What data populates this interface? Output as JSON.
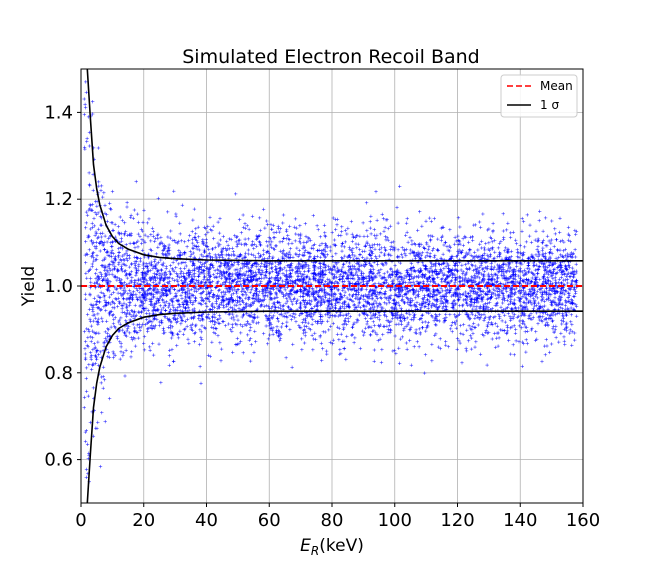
{
  "chart_data": {
    "type": "scatter",
    "title": "Simulated Electron Recoil Band",
    "xlabel": "E_R(keV)",
    "xlabel_parts": {
      "main": "E",
      "sub": "R",
      "unit": "(keV)"
    },
    "ylabel": "Yield",
    "xlim": [
      0,
      160
    ],
    "ylim": [
      0.5,
      1.5
    ],
    "xticks": [
      0,
      20,
      40,
      60,
      80,
      100,
      120,
      140,
      160
    ],
    "xtick_labels": [
      "0",
      "20",
      "40",
      "60",
      "80",
      "100",
      "120",
      "140",
      "160"
    ],
    "yticks": [
      0.6,
      0.8,
      1.0,
      1.2,
      1.4
    ],
    "ytick_labels": [
      "0.6",
      "0.8",
      "1.0",
      "1.2",
      "1.4"
    ],
    "grid": true,
    "legend": {
      "placement": "top-right",
      "entries": [
        {
          "label": "Mean",
          "color": "#ff0000",
          "style": "dashed"
        },
        {
          "label": "1 σ",
          "color": "#000000",
          "style": "solid"
        }
      ]
    },
    "series": [
      {
        "name": "Mean",
        "kind": "line",
        "color": "#ff0000",
        "style": "dashed",
        "x": [
          0,
          160
        ],
        "y": [
          1.0,
          1.0
        ]
      },
      {
        "name": "1 σ",
        "kind": "line",
        "color": "#000000",
        "style": "solid",
        "x": [
          2,
          3,
          4,
          5,
          6,
          8,
          10,
          12,
          15,
          20,
          25,
          30,
          40,
          50,
          60,
          80,
          100,
          120,
          140,
          160
        ],
        "y": [
          1.5,
          1.386,
          1.28,
          1.224,
          1.187,
          1.14,
          1.114,
          1.098,
          1.085,
          1.072,
          1.066,
          1.063,
          1.06,
          1.059,
          1.058,
          1.058,
          1.058,
          1.058,
          1.058,
          1.058
        ]
      },
      {
        "name": "1 σ",
        "kind": "line",
        "color": "#000000",
        "style": "solid",
        "x": [
          2,
          3,
          4,
          5,
          6,
          8,
          10,
          12,
          15,
          20,
          25,
          30,
          40,
          50,
          60,
          80,
          100,
          120,
          140,
          160
        ],
        "y": [
          0.5,
          0.614,
          0.72,
          0.776,
          0.813,
          0.86,
          0.886,
          0.902,
          0.915,
          0.928,
          0.934,
          0.937,
          0.94,
          0.941,
          0.942,
          0.942,
          0.942,
          0.942,
          0.942,
          0.942
        ]
      },
      {
        "name": "",
        "kind": "scatter",
        "marker": "+",
        "color": "#0000ff",
        "x_range": [
          1,
          158
        ],
        "mean": 1.0,
        "approx_point_count": 6000
      }
    ]
  }
}
